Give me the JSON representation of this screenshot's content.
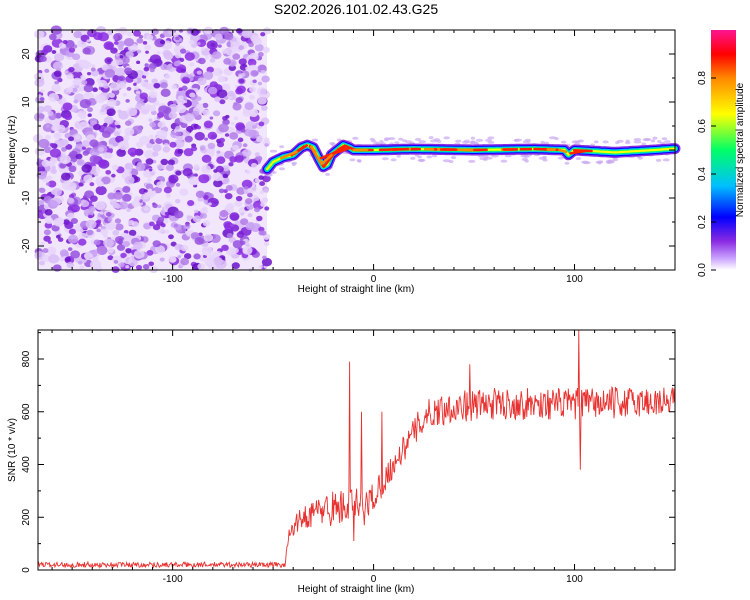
{
  "figure_title": "S202.2026.101.02.43.G25",
  "colors": {
    "axes": "#000000",
    "snr_line": "#e8312f",
    "noise_purple": "#8a2be2",
    "colormap": [
      "#ffffff",
      "#8a2be2",
      "#0000ff",
      "#00bfff",
      "#00ff66",
      "#ffff00",
      "#ff8800",
      "#ff0000",
      "#ff00aa"
    ]
  },
  "chart_data": [
    {
      "type": "heatmap",
      "id": "spectrogram",
      "title": "",
      "xlabel": "Height of straight line (km)",
      "ylabel": "Frequency (Hz)",
      "xlim": [
        -167,
        150
      ],
      "ylim": [
        -25,
        25
      ],
      "xticks": [
        -100,
        0,
        100
      ],
      "xtick_labels": [
        "-100",
        "0",
        "100"
      ],
      "yticks": [
        -20,
        -10,
        0,
        10,
        20
      ],
      "ytick_labels": [
        "-20",
        "-10",
        "0",
        "10",
        "20"
      ],
      "noise_region_x": [
        -167,
        -53
      ],
      "signal_trace": {
        "x": [
          -53,
          -50,
          -45,
          -40,
          -36,
          -33,
          -30,
          -27,
          -25,
          -23,
          -21,
          -18,
          -15,
          -12,
          -10,
          0,
          20,
          50,
          80,
          95,
          97,
          100,
          120,
          140,
          150
        ],
        "freq": [
          -4,
          -2.5,
          -1.5,
          -1,
          0.5,
          1,
          0.5,
          -2,
          -3.5,
          -3,
          -1,
          0,
          1,
          0.5,
          0,
          0,
          0.2,
          0,
          0.2,
          0,
          -1,
          0,
          -0.5,
          0,
          0.3
        ]
      },
      "colorbar": {
        "label": "Normalized spectral amplitude",
        "range": [
          0,
          1
        ],
        "ticks": [
          0,
          0.2,
          0.4,
          0.6,
          0.8
        ],
        "tick_labels": [
          "0.0",
          "0.2",
          "0.4",
          "0.6",
          "0.8"
        ]
      }
    },
    {
      "type": "line",
      "id": "snr",
      "title": "",
      "xlabel": "Height of straight line (km)",
      "ylabel": "SNR (10 * v/v)",
      "xlim": [
        -167,
        150
      ],
      "ylim": [
        0,
        910
      ],
      "xticks": [
        -100,
        0,
        100
      ],
      "xtick_labels": [
        "-100",
        "0",
        "100"
      ],
      "yticks": [
        0,
        200,
        400,
        600,
        800
      ],
      "ytick_labels": [
        "0",
        "200",
        "400",
        "600",
        "800"
      ],
      "trend": {
        "x": [
          -167,
          -44,
          -42,
          -35,
          -25,
          -15,
          -10,
          -5,
          0,
          5,
          10,
          15,
          20,
          25,
          30,
          40,
          60,
          100,
          150
        ],
        "y": [
          20,
          20,
          150,
          200,
          230,
          240,
          250,
          230,
          280,
          340,
          400,
          460,
          520,
          580,
          600,
          620,
          630,
          630,
          640
        ]
      },
      "noise_amplitude": {
        "x": [
          -167,
          -44,
          -40,
          -20,
          -5,
          10,
          25,
          150
        ],
        "amp": [
          10,
          10,
          35,
          70,
          70,
          45,
          60,
          60
        ]
      },
      "spikes": [
        {
          "x": -12,
          "y": 790
        },
        {
          "x": -10,
          "y": 110
        },
        {
          "x": -6,
          "y": 600
        },
        {
          "x": 4,
          "y": 600
        },
        {
          "x": 48,
          "y": 780
        },
        {
          "x": 102,
          "y": 910
        },
        {
          "x": 103,
          "y": 380
        }
      ]
    }
  ]
}
